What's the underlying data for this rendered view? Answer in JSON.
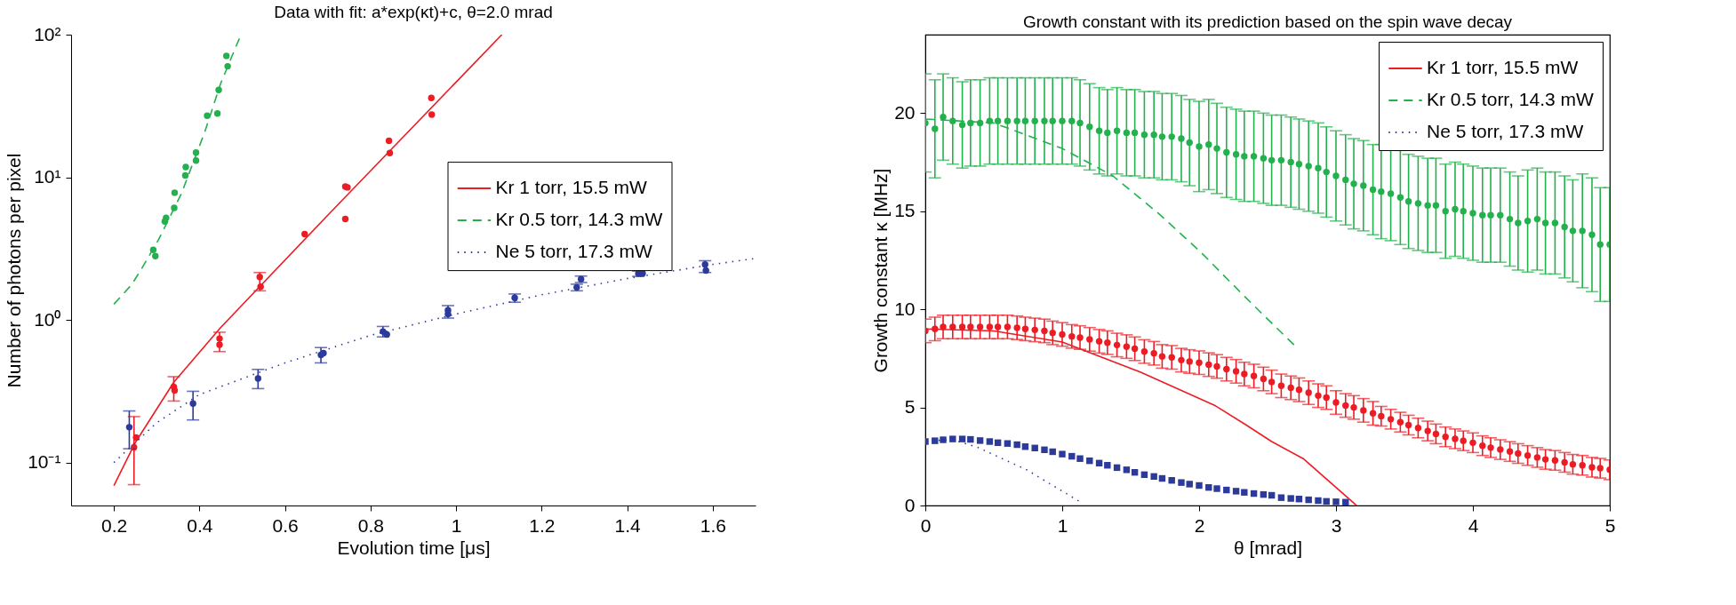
{
  "chart_data": [
    {
      "type": "scatter",
      "title": "Data with fit: a*exp(κt)+c,   θ=2.0 mrad",
      "xlabel": "Evolution time [μs]",
      "ylabel": "Number of photons per pixel",
      "xlim": [
        0.1,
        1.7
      ],
      "xticks": [
        0.2,
        0.4,
        0.6,
        0.8,
        1,
        1.2,
        1.4,
        1.6
      ],
      "ylim": [
        0.05,
        100
      ],
      "yticks": [
        {
          "value": 0.1,
          "label": "10⁻¹"
        },
        {
          "value": 1,
          "label": "10⁰"
        },
        {
          "value": 10,
          "label": "10¹"
        },
        {
          "value": 100,
          "label": "10²"
        }
      ],
      "log": "y",
      "grid": false,
      "legend": "right",
      "series": [
        {
          "type": "line",
          "name": "Kr 1 torr, 15.5 mW",
          "color": "#ed1c24",
          "line_style": "solid",
          "x": [
            0.2,
            0.25,
            0.34,
            0.449,
            0.702,
            1.107
          ],
          "values": [
            0.069,
            0.138,
            0.366,
            0.88,
            5.5,
            100
          ]
        },
        {
          "type": "line",
          "name": "Kr 0.5 torr, 14.3 mW",
          "color": "#22b14c",
          "line_style": "dashed",
          "x": [
            0.2,
            0.241,
            0.263,
            0.304,
            0.358,
            0.413,
            0.449,
            0.497
          ],
          "values": [
            1.29,
            1.76,
            2.24,
            3.63,
            7.7,
            21,
            45,
            100
          ]
        },
        {
          "type": "line",
          "name": "Ne 5 torr, 17.3 mW",
          "color": "#2b3a9b",
          "line_style": "dotted",
          "x": [
            0.2,
            0.3,
            0.4,
            0.6,
            0.8,
            1.0,
            1.2,
            1.4,
            1.6,
            1.7
          ],
          "values": [
            0.1,
            0.19,
            0.3,
            0.5,
            0.78,
            1.1,
            1.5,
            1.95,
            2.45,
            2.7
          ]
        },
        {
          "marker": "circle",
          "color": "#22b14c",
          "x": [
            0.292,
            0.297,
            0.319,
            0.322,
            0.341,
            0.342,
            0.367,
            0.368,
            0.392,
            0.392,
            0.418,
            0.442,
            0.445,
            0.466,
            0.463
          ],
          "values": [
            3.1,
            2.8,
            4.9,
            5.2,
            6.1,
            7.8,
            10.3,
            11.8,
            13.1,
            14.9,
            27,
            28,
            41,
            60,
            71
          ]
        },
        {
          "marker": "circle",
          "color": "#ed1c24",
          "x": [
            0.247,
            0.252,
            0.34,
            0.342,
            0.447,
            0.447,
            0.541,
            0.543,
            0.646,
            0.741,
            0.746,
            0.741,
            0.843,
            0.845,
            0.942,
            0.943
          ],
          "values": [
            0.128,
            0.15,
            0.34,
            0.32,
            0.74,
            0.67,
            2.0,
            1.71,
            4.0,
            8.6,
            8.5,
            5.1,
            18,
            14.8,
            36,
            27.5
          ],
          "errors": [
            [
              0.07,
              0.21
            ],
            null,
            [
              0.27,
              0.4
            ],
            null,
            [
              0.6,
              0.82
            ],
            null,
            [
              1.6,
              2.15
            ],
            null,
            null,
            null,
            null,
            null,
            null,
            null,
            null,
            null
          ]
        },
        {
          "marker": "circle",
          "color": "#2b3a9b",
          "x": [
            0.236,
            0.385,
            0.537,
            0.684,
            0.69,
            0.829,
            0.838,
            0.981,
            0.981,
            1.137,
            1.282,
            1.292,
            1.426,
            1.436,
            1.582,
            1.584
          ],
          "values": [
            0.177,
            0.259,
            0.389,
            0.568,
            0.585,
            0.83,
            0.79,
            1.17,
            1.1,
            1.43,
            1.69,
            1.93,
            2.11,
            2.12,
            2.45,
            2.22
          ],
          "errors": [
            [
              0.125,
              0.23
            ],
            [
              0.199,
              0.316
            ],
            [
              0.33,
              0.45
            ],
            [
              0.5,
              0.64
            ],
            null,
            [
              0.76,
              0.9
            ],
            null,
            [
              1.03,
              1.26
            ],
            null,
            [
              1.33,
              1.52
            ],
            [
              1.6,
              1.78
            ],
            [
              1.83,
              2.03
            ],
            [
              2.02,
              2.2
            ],
            null,
            [
              2.15,
              2.6
            ],
            null
          ]
        }
      ]
    },
    {
      "type": "scatter",
      "title": "Growth constant with its prediction based on the spin wave decay",
      "xlabel": "θ [mrad]",
      "ylabel": "Growth constant κ [MHz]",
      "xlim": [
        0,
        5
      ],
      "xticks": [
        0,
        1,
        2,
        3,
        4,
        5
      ],
      "ylim": [
        0,
        24
      ],
      "yticks": [
        0,
        5,
        10,
        15,
        20
      ],
      "grid": false,
      "legend": "top right",
      "x": [
        0,
        0.07,
        0.13,
        0.2,
        0.27,
        0.33,
        0.4,
        0.47,
        0.53,
        0.6,
        0.67,
        0.73,
        0.8,
        0.87,
        0.93,
        1,
        1.07,
        1.13,
        1.2,
        1.27,
        1.33,
        1.4,
        1.47,
        1.53,
        1.6,
        1.67,
        1.73,
        1.8,
        1.87,
        1.93,
        2,
        2.07,
        2.13,
        2.2,
        2.27,
        2.33,
        2.4,
        2.47,
        2.53,
        2.6,
        2.67,
        2.73,
        2.8,
        2.87,
        2.93,
        3,
        3.07,
        3.13,
        3.2,
        3.27,
        3.33,
        3.4,
        3.47,
        3.53,
        3.6,
        3.67,
        3.73,
        3.8,
        3.87,
        3.93,
        4,
        4.07,
        4.13,
        4.2,
        4.27,
        4.33,
        4.4,
        4.47,
        4.53,
        4.6,
        4.67,
        4.73,
        4.8,
        4.87,
        4.93,
        5
      ],
      "series": [
        {
          "type": "line",
          "name": "Kr 1 torr, 15.5 mW",
          "color": "#ed1c24",
          "line_style": "solid",
          "x": [
            0,
            0.5,
            1.0,
            1.57,
            2.12,
            2.34,
            2.53,
            2.76,
            3.15
          ],
          "values": [
            9.0,
            8.9,
            8.33,
            6.8,
            5.08,
            4.12,
            3.26,
            2.39,
            0
          ]
        },
        {
          "type": "line",
          "name": "Kr 0.5 torr, 14.3 mW",
          "color": "#22b14c",
          "line_style": "dashed",
          "x": [
            0,
            0.5,
            1.0,
            1.37,
            1.71,
            2.01,
            2.34,
            2.7
          ],
          "values": [
            19.7,
            19.5,
            18.2,
            16.8,
            14.85,
            12.93,
            10.6,
            8.14
          ]
        },
        {
          "type": "line",
          "name": "Ne 5 torr, 17.3 mW",
          "color": "#2b3a9b",
          "line_style": "dotted",
          "x": [
            0,
            0.2,
            0.38,
            0.74,
            1.13
          ],
          "values": [
            3.3,
            3.35,
            2.97,
            1.82,
            0.19
          ]
        },
        {
          "marker": "circle",
          "color": "#22b14c",
          "values": [
            19.5,
            19.2,
            19.8,
            19.6,
            19.4,
            19.5,
            19.5,
            19.6,
            19.6,
            19.6,
            19.6,
            19.6,
            19.6,
            19.6,
            19.6,
            19.6,
            19.6,
            19.5,
            19.3,
            19.1,
            19.0,
            19.1,
            19.0,
            19.0,
            18.9,
            18.9,
            18.8,
            18.8,
            18.7,
            18.5,
            18.3,
            18.4,
            18.2,
            18.0,
            17.9,
            17.8,
            17.8,
            17.7,
            17.6,
            17.6,
            17.5,
            17.4,
            17.3,
            17.2,
            17.0,
            16.8,
            16.6,
            16.4,
            16.3,
            16.1,
            16.0,
            15.9,
            15.7,
            15.5,
            15.4,
            15.3,
            15.3,
            15.0,
            15.1,
            15.0,
            14.9,
            14.8,
            14.8,
            14.8,
            14.6,
            14.4,
            14.5,
            14.6,
            14.4,
            14.4,
            14.2,
            14.0,
            14.0,
            13.8,
            13.3,
            13.3
          ],
          "errors": [
            2.5,
            2.5,
            2.2,
            2.2,
            2.2,
            2.2,
            2.2,
            2.2,
            2.2,
            2.2,
            2.2,
            2.2,
            2.2,
            2.2,
            2.2,
            2.2,
            2.2,
            2.2,
            2.2,
            2.2,
            2.2,
            2.2,
            2.2,
            2.2,
            2.2,
            2.2,
            2.2,
            2.2,
            2.2,
            2.2,
            2.3,
            2.3,
            2.3,
            2.3,
            2.3,
            2.3,
            2.3,
            2.3,
            2.3,
            2.3,
            2.3,
            2.3,
            2.3,
            2.3,
            2.3,
            2.3,
            2.3,
            2.3,
            2.3,
            2.3,
            2.4,
            2.4,
            2.4,
            2.4,
            2.4,
            2.4,
            2.4,
            2.4,
            2.4,
            2.4,
            2.4,
            2.4,
            2.4,
            2.4,
            2.4,
            2.4,
            2.6,
            2.6,
            2.6,
            2.6,
            2.6,
            2.6,
            2.9,
            2.9,
            2.9,
            2.9
          ]
        },
        {
          "marker": "circle",
          "color": "#ed1c24",
          "values": [
            8.9,
            9.0,
            9.1,
            9.1,
            9.1,
            9.1,
            9.1,
            9.1,
            9.1,
            9.1,
            9.06,
            9.0,
            8.95,
            8.9,
            8.8,
            8.72,
            8.62,
            8.56,
            8.47,
            8.37,
            8.3,
            8.18,
            8.1,
            7.99,
            7.85,
            7.76,
            7.6,
            7.55,
            7.41,
            7.34,
            7.28,
            7.18,
            7.09,
            6.95,
            6.84,
            6.7,
            6.6,
            6.45,
            6.3,
            6.1,
            6.0,
            5.9,
            5.75,
            5.6,
            5.5,
            5.25,
            5.1,
            5.0,
            4.85,
            4.7,
            4.55,
            4.4,
            4.25,
            4.1,
            3.95,
            3.8,
            3.65,
            3.5,
            3.4,
            3.3,
            3.2,
            3.05,
            2.95,
            2.85,
            2.75,
            2.65,
            2.55,
            2.45,
            2.35,
            2.3,
            2.2,
            2.1,
            2.05,
            1.95,
            1.9,
            1.82
          ],
          "errors": [
            0.6,
            0.6,
            0.6,
            0.6,
            0.6,
            0.6,
            0.6,
            0.6,
            0.6,
            0.6,
            0.6,
            0.6,
            0.6,
            0.6,
            0.6,
            0.6,
            0.6,
            0.6,
            0.6,
            0.6,
            0.6,
            0.6,
            0.6,
            0.6,
            0.6,
            0.6,
            0.6,
            0.6,
            0.6,
            0.6,
            0.6,
            0.6,
            0.6,
            0.6,
            0.6,
            0.6,
            0.6,
            0.6,
            0.6,
            0.6,
            0.6,
            0.6,
            0.6,
            0.6,
            0.6,
            0.6,
            0.6,
            0.6,
            0.6,
            0.6,
            0.5,
            0.5,
            0.5,
            0.5,
            0.5,
            0.5,
            0.5,
            0.5,
            0.5,
            0.5,
            0.5,
            0.5,
            0.5,
            0.5,
            0.5,
            0.5,
            0.5,
            0.5,
            0.5,
            0.5,
            0.5,
            0.5,
            0.5,
            0.5,
            0.5,
            0.5
          ]
        },
        {
          "color": "#2b3a9b",
          "marker": "square",
          "x": [
            0,
            0.07,
            0.13,
            0.2,
            0.27,
            0.33,
            0.4,
            0.47,
            0.53,
            0.6,
            0.67,
            0.73,
            0.8,
            0.87,
            0.93,
            1,
            1.07,
            1.13,
            1.2,
            1.27,
            1.33,
            1.4,
            1.47,
            1.53,
            1.6,
            1.67,
            1.73,
            1.8,
            1.87,
            1.93,
            2,
            2.07,
            2.13,
            2.2,
            2.27,
            2.33,
            2.4,
            2.47,
            2.53,
            2.6,
            2.67,
            2.73,
            2.8,
            2.87,
            2.93,
            3,
            3.07
          ],
          "values": [
            3.26,
            3.3,
            3.35,
            3.39,
            3.39,
            3.37,
            3.31,
            3.26,
            3.2,
            3.16,
            3.1,
            3.0,
            2.93,
            2.84,
            2.74,
            2.62,
            2.51,
            2.39,
            2.28,
            2.16,
            2.05,
            1.93,
            1.82,
            1.69,
            1.57,
            1.48,
            1.38,
            1.28,
            1.17,
            1.09,
            1.02,
            0.92,
            0.86,
            0.79,
            0.73,
            0.67,
            0.61,
            0.56,
            0.52,
            0.4,
            0.36,
            0.33,
            0.29,
            0.25,
            0.21,
            0.19,
            0.17
          ]
        }
      ]
    }
  ]
}
